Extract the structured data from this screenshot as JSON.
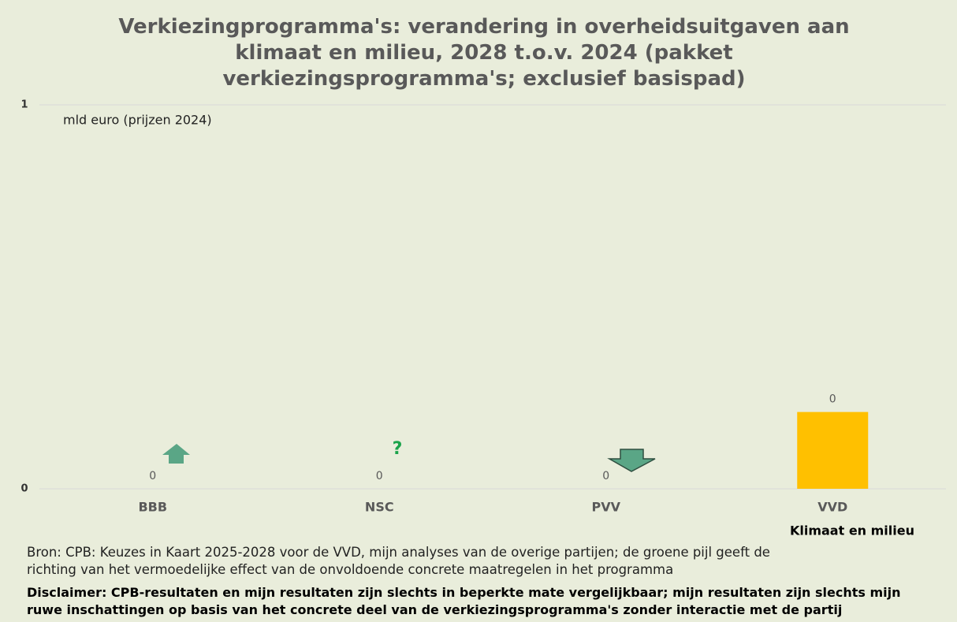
{
  "chart_data": {
    "type": "bar",
    "title": "Verkiezingprogramma's: verandering in overheidsuitgaven aan klimaat en milieu, 2028 t.o.v. 2024 (pakket verkiezingsprogramma's; exclusief basispad)",
    "y_label": "mld euro (prijzen 2024)",
    "categories": [
      "BBB",
      "NSC",
      "PVV",
      "VVD"
    ],
    "series": [
      {
        "name": "Klimaat en milieu",
        "color": "#ffc000",
        "values": [
          0,
          0,
          0,
          0.2
        ],
        "value_labels": [
          "0",
          "0",
          "0",
          "0"
        ]
      }
    ],
    "ylim": [
      0,
      1
    ],
    "yticks": [
      0,
      1
    ],
    "grid": true,
    "annotations": [
      "?"
    ],
    "source": "Bron: CPB: Keuzes in Kaart 2025-2028 voor de VVD, mijn analyses van de overige partijen; de groene pijl geeft de richting van het vermoedelijke effect van de onvoldoende concrete maatregelen in het programma",
    "disclaimer": "Disclaimer: CPB-resultaten en mijn resultaten zijn slechts in beperkte mate vergelijkbaar; mijn resultaten zijn slechts mijn ruwe inschattingen op basis van het concrete deel van de verkiezingsprogramma's zonder interactie met de partij"
  }
}
